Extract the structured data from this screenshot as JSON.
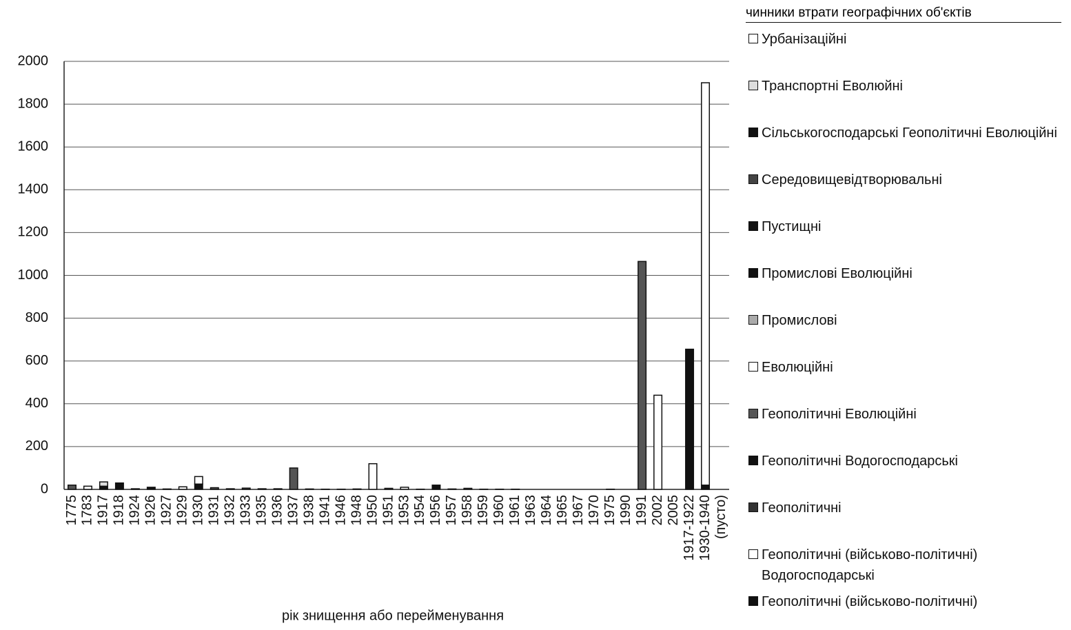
{
  "chart_data": {
    "type": "bar",
    "stacked": true,
    "x_label": "рік знищення або перейменування",
    "legend_title": "чинники втрати географічних об'єктів",
    "legend": "right",
    "grid": true,
    "ylim": [
      0,
      2000
    ],
    "yticks": [
      0,
      200,
      400,
      600,
      800,
      1000,
      1200,
      1400,
      1600,
      1800,
      2000
    ],
    "categories": [
      "1775",
      "1783",
      "1917",
      "1918",
      "1924",
      "1926",
      "1927",
      "1929",
      "1930",
      "1931",
      "1932",
      "1933",
      "1935",
      "1936",
      "1937",
      "1938",
      "1941",
      "1946",
      "1948",
      "1950",
      "1951",
      "1953",
      "1954",
      "1956",
      "1957",
      "1958",
      "1959",
      "1960",
      "1961",
      "1963",
      "1964",
      "1965",
      "1967",
      "1970",
      "1975",
      "1990",
      "1991",
      "2002",
      "2005",
      "1917-1922",
      "1930-1940",
      "(пусто)"
    ],
    "series": [
      {
        "name": "Урбанізаційні",
        "color": "#ffffff",
        "values": [
          0,
          15,
          0,
          0,
          0,
          0,
          0,
          12,
          35,
          0,
          0,
          0,
          0,
          0,
          0,
          0,
          0,
          0,
          0,
          0,
          5,
          10,
          0,
          0,
          0,
          5,
          0,
          0,
          0,
          0,
          0,
          0,
          0,
          0,
          0,
          0,
          0,
          440,
          0,
          0,
          1880,
          0
        ]
      },
      {
        "name": "Транспортні  Еволюйні",
        "color": "#dddddd",
        "values": [
          0,
          0,
          20,
          0,
          0,
          0,
          0,
          0,
          0,
          0,
          0,
          0,
          0,
          0,
          0,
          0,
          0,
          0,
          0,
          0,
          0,
          0,
          0,
          0,
          0,
          0,
          0,
          0,
          0,
          0,
          0,
          0,
          0,
          0,
          0,
          0,
          0,
          0,
          0,
          0,
          0,
          0
        ]
      },
      {
        "name": "Сільськогосподарські  Геополітичні Еволюційні",
        "color": "#111111",
        "values": [
          0,
          0,
          0,
          0,
          0,
          0,
          0,
          0,
          0,
          0,
          0,
          0,
          0,
          0,
          0,
          0,
          0,
          0,
          0,
          0,
          0,
          0,
          0,
          0,
          0,
          0,
          0,
          0,
          0,
          0,
          0,
          0,
          0,
          0,
          0,
          0,
          0,
          0,
          0,
          0,
          0,
          0
        ]
      },
      {
        "name": "Середовищевідтворювальні",
        "color": "#444444",
        "values": [
          0,
          0,
          0,
          0,
          0,
          0,
          0,
          0,
          0,
          0,
          0,
          0,
          0,
          0,
          0,
          0,
          0,
          0,
          0,
          0,
          0,
          0,
          0,
          0,
          0,
          0,
          0,
          0,
          0,
          0,
          0,
          0,
          0,
          0,
          0,
          0,
          0,
          0,
          0,
          0,
          0,
          0
        ]
      },
      {
        "name": "Пустищні",
        "color": "#111111",
        "values": [
          0,
          0,
          0,
          0,
          0,
          0,
          0,
          0,
          0,
          0,
          0,
          0,
          0,
          0,
          0,
          0,
          0,
          0,
          0,
          0,
          0,
          0,
          0,
          0,
          0,
          0,
          0,
          0,
          0,
          0,
          0,
          0,
          0,
          0,
          0,
          0,
          0,
          0,
          0,
          0,
          0,
          0
        ]
      },
      {
        "name": "Промислові  Еволюційні",
        "color": "#111111",
        "values": [
          0,
          0,
          0,
          0,
          0,
          0,
          0,
          0,
          0,
          0,
          0,
          0,
          0,
          0,
          0,
          0,
          0,
          0,
          0,
          0,
          0,
          0,
          0,
          0,
          0,
          0,
          0,
          0,
          0,
          0,
          0,
          0,
          0,
          0,
          0,
          0,
          0,
          0,
          0,
          0,
          0,
          0
        ]
      },
      {
        "name": "Промислові",
        "color": "#aaaaaa",
        "values": [
          0,
          0,
          0,
          0,
          0,
          0,
          0,
          0,
          0,
          0,
          0,
          0,
          0,
          0,
          0,
          0,
          0,
          0,
          0,
          0,
          0,
          0,
          0,
          0,
          0,
          0,
          0,
          0,
          0,
          0,
          0,
          0,
          0,
          0,
          0,
          0,
          0,
          0,
          0,
          0,
          0,
          0
        ]
      },
      {
        "name": "Еволюційні",
        "color": "#ffffff",
        "values": [
          0,
          0,
          0,
          0,
          0,
          0,
          0,
          0,
          0,
          0,
          0,
          0,
          0,
          0,
          0,
          0,
          0,
          0,
          0,
          120,
          0,
          0,
          0,
          0,
          0,
          0,
          0,
          0,
          0,
          0,
          0,
          0,
          0,
          0,
          0,
          0,
          0,
          0,
          0,
          0,
          0,
          0
        ]
      },
      {
        "name": "Геополітичні  Еволюційні",
        "color": "#555555",
        "values": [
          20,
          0,
          0,
          0,
          0,
          0,
          0,
          0,
          0,
          8,
          0,
          6,
          0,
          0,
          100,
          0,
          0,
          0,
          0,
          0,
          0,
          0,
          0,
          0,
          0,
          0,
          0,
          0,
          0,
          0,
          0,
          0,
          0,
          0,
          0,
          0,
          1065,
          0,
          0,
          0,
          0,
          0
        ]
      },
      {
        "name": "Геополітичні  Водогосподарські",
        "color": "#111111",
        "values": [
          0,
          0,
          0,
          0,
          0,
          0,
          0,
          0,
          0,
          0,
          0,
          0,
          0,
          0,
          0,
          0,
          0,
          0,
          0,
          0,
          0,
          0,
          0,
          0,
          0,
          0,
          0,
          0,
          0,
          0,
          0,
          0,
          0,
          0,
          0,
          0,
          0,
          0,
          0,
          0,
          0,
          0
        ]
      },
      {
        "name": "Геополітичні",
        "color": "#333333",
        "values": [
          0,
          0,
          0,
          0,
          3,
          0,
          2,
          0,
          0,
          0,
          3,
          0,
          3,
          3,
          0,
          2,
          1,
          1,
          2,
          0,
          0,
          0,
          1,
          0,
          2,
          0,
          1,
          1,
          1,
          0,
          0,
          0,
          0,
          0,
          1,
          0,
          0,
          0,
          0,
          0,
          0,
          0
        ]
      },
      {
        "name": "Геополітичні (військово-політичні) Водогосподарські",
        "color": "#ffffff",
        "values": [
          0,
          0,
          0,
          0,
          0,
          0,
          0,
          0,
          0,
          0,
          0,
          0,
          0,
          0,
          0,
          0,
          0,
          0,
          0,
          0,
          0,
          0,
          0,
          0,
          0,
          0,
          0,
          0,
          0,
          0,
          0,
          0,
          0,
          0,
          0,
          0,
          0,
          0,
          0,
          0,
          0,
          0
        ]
      },
      {
        "name": "Геополітичні (військово-політичні)",
        "color": "#111111",
        "values": [
          0,
          0,
          15,
          30,
          0,
          10,
          0,
          0,
          25,
          0,
          0,
          0,
          0,
          0,
          0,
          0,
          0,
          0,
          0,
          0,
          0,
          0,
          0,
          20,
          0,
          0,
          0,
          0,
          0,
          0,
          0,
          0,
          0,
          0,
          0,
          0,
          0,
          0,
          0,
          655,
          20,
          0
        ]
      }
    ]
  }
}
